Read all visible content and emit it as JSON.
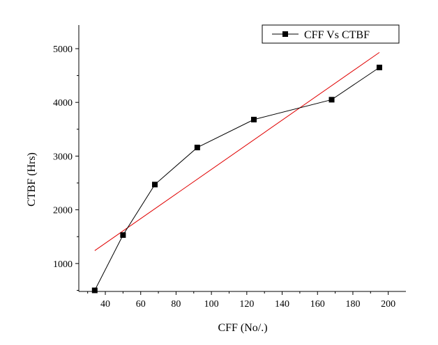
{
  "chart_data": {
    "type": "line",
    "xlabel": "CFF (No/.)",
    "ylabel": "CTBF (Hrs)",
    "xlim": [
      25,
      210
    ],
    "ylim": [
      480,
      5440
    ],
    "xticks": [
      40,
      60,
      80,
      100,
      120,
      140,
      160,
      180,
      200
    ],
    "yticks": [
      1000,
      2000,
      3000,
      4000,
      5000
    ],
    "grid": false,
    "legend": {
      "placement": "top-right"
    },
    "series": [
      {
        "name": "CFF Vs CTBF",
        "color": "#000000",
        "marker": "square",
        "x": [
          34,
          50,
          68,
          92,
          124,
          168,
          195
        ],
        "y": [
          500,
          1530,
          2470,
          3160,
          3680,
          4050,
          4650
        ]
      }
    ],
    "fit_line": {
      "color": "#e00000",
      "x": [
        34,
        195
      ],
      "y": [
        1240,
        4930
      ]
    }
  }
}
